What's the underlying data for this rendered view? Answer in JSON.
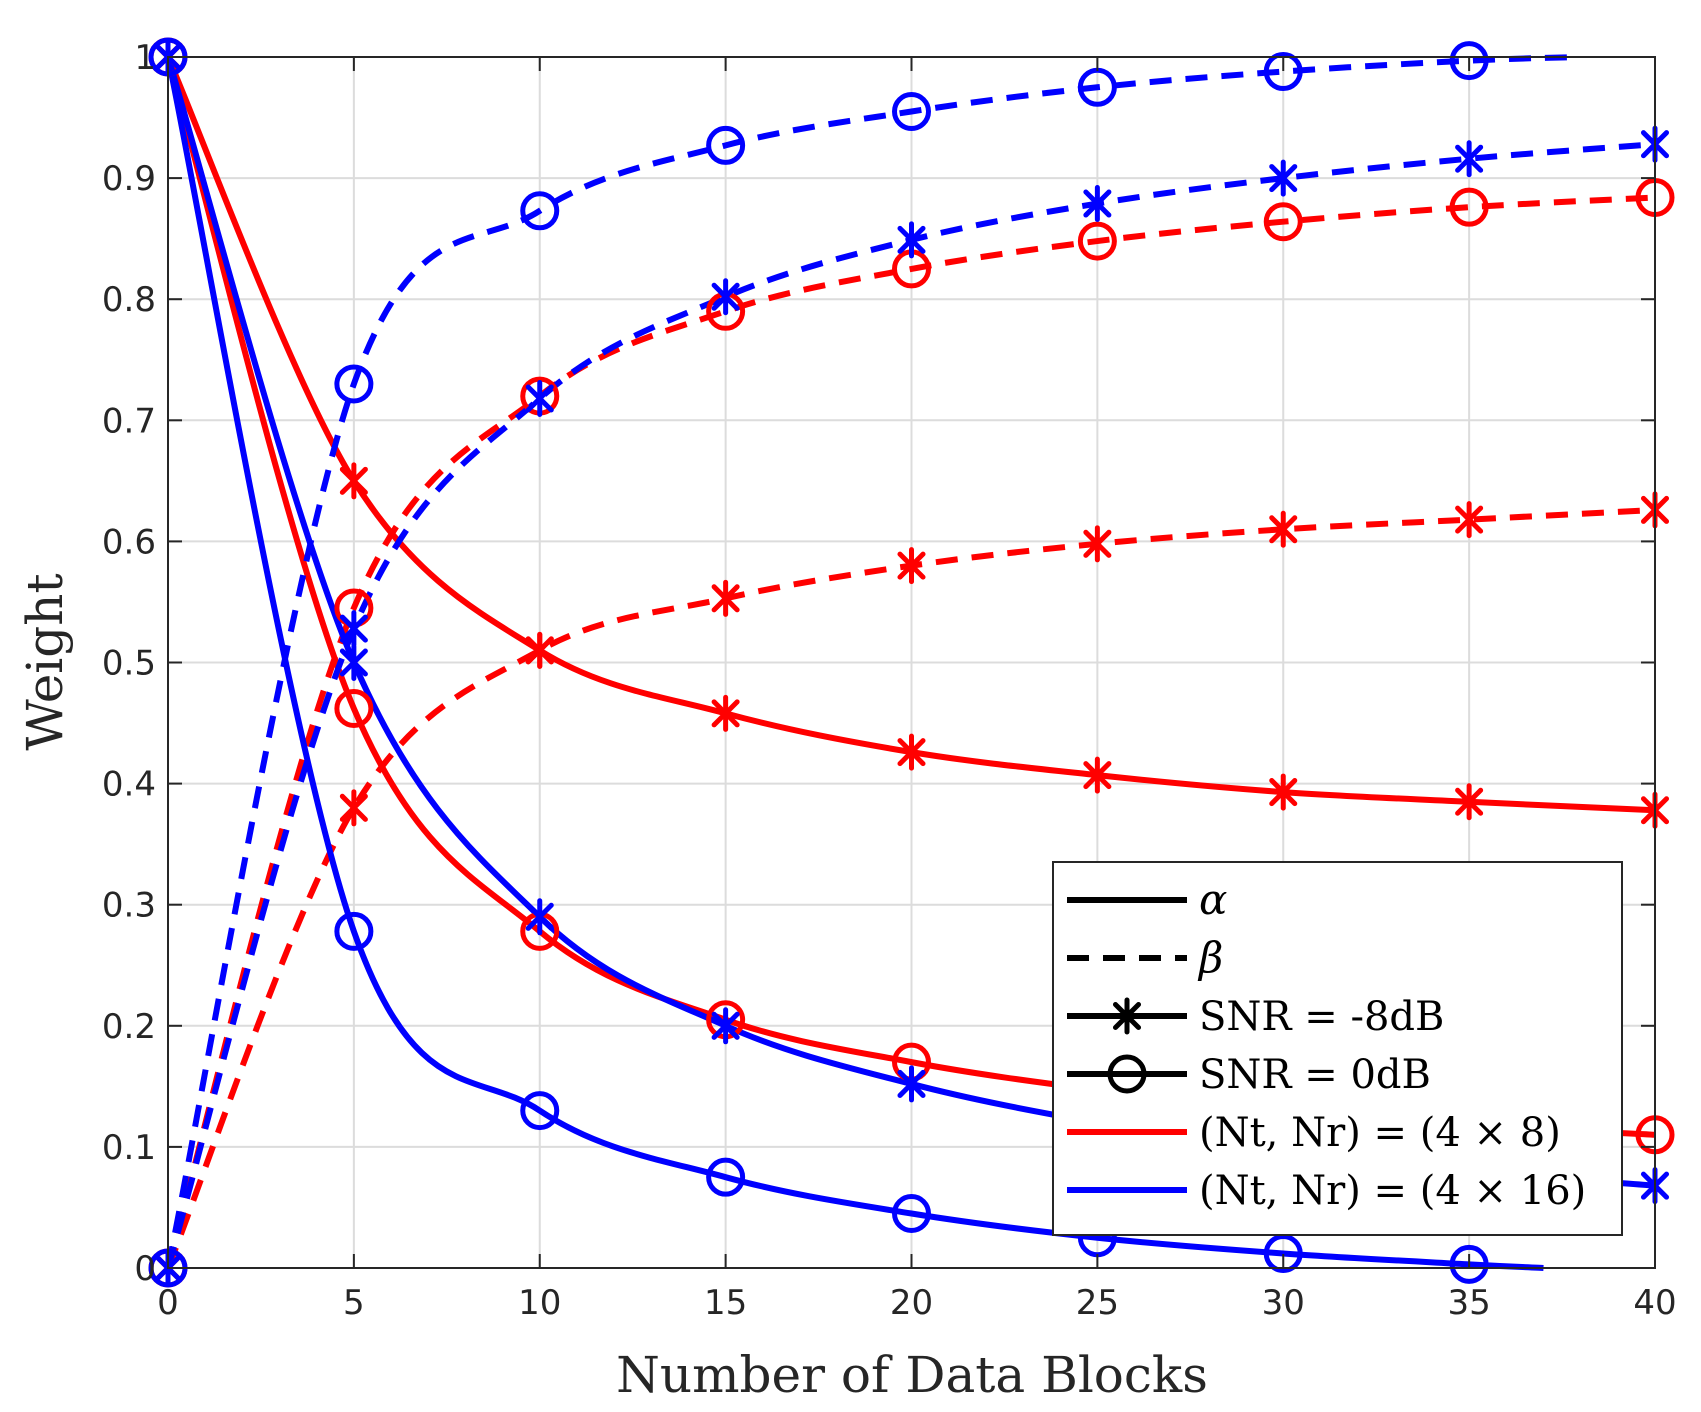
{
  "chart_data": {
    "type": "line",
    "title": "",
    "xlabel": "Number of Data Blocks",
    "ylabel": "Weight",
    "xlim": [
      0,
      40
    ],
    "ylim": [
      0,
      1
    ],
    "x_ticks": [
      "0",
      "5",
      "10",
      "15",
      "20",
      "25",
      "30",
      "35",
      "40"
    ],
    "y_ticks": [
      "0",
      "0.1",
      "0.2",
      "0.3",
      "0.4",
      "0.5",
      "0.6",
      "0.7",
      "0.8",
      "0.9",
      "1"
    ],
    "grid": true,
    "legend_position": "bottom-right",
    "legend": [
      {
        "label": "α",
        "style": "solid",
        "marker": "none",
        "color": "#000000"
      },
      {
        "label": "β",
        "style": "dashed",
        "marker": "none",
        "color": "#000000"
      },
      {
        "label": "SNR = -8dB",
        "style": "solid",
        "marker": "asterisk",
        "color": "#000000"
      },
      {
        "label": "SNR = 0dB",
        "style": "solid",
        "marker": "circle",
        "color": "#000000"
      },
      {
        "label": "(Nt, Nr) = (4 × 8)",
        "style": "solid",
        "marker": "none",
        "color": "#ff0000"
      },
      {
        "label": "(Nt, Nr) = (4 × 16)",
        "style": "solid",
        "marker": "none",
        "color": "#0000ff"
      }
    ],
    "series": [
      {
        "style": "solid",
        "marker": "asterisk",
        "color": "#ff0000",
        "x": [
          0,
          5,
          10,
          15,
          20,
          25,
          30,
          35,
          40
        ],
        "y": [
          1.0,
          0.65,
          0.51,
          0.458,
          0.426,
          0.407,
          0.393,
          0.385,
          0.378
        ]
      },
      {
        "style": "dashed",
        "marker": "asterisk",
        "color": "#ff0000",
        "x": [
          0,
          5,
          10,
          15,
          20,
          25,
          30,
          35,
          40
        ],
        "y": [
          0.0,
          0.38,
          0.51,
          0.553,
          0.58,
          0.598,
          0.61,
          0.618,
          0.626
        ]
      },
      {
        "style": "solid",
        "marker": "circle",
        "color": "#ff0000",
        "x": [
          0,
          5,
          10,
          15,
          20,
          25,
          30,
          35,
          40
        ],
        "y": [
          1.0,
          0.462,
          0.278,
          0.205,
          0.17,
          0.147,
          0.13,
          0.118,
          0.11
        ]
      },
      {
        "style": "dashed",
        "marker": "circle",
        "color": "#ff0000",
        "x": [
          0,
          5,
          10,
          15,
          20,
          25,
          30,
          35,
          40
        ],
        "y": [
          0.0,
          0.545,
          0.72,
          0.79,
          0.825,
          0.848,
          0.864,
          0.876,
          0.884
        ]
      },
      {
        "style": "solid",
        "marker": "asterisk",
        "color": "#0000ff",
        "x": [
          0,
          5,
          10,
          15,
          20,
          25,
          30,
          35,
          40
        ],
        "y": [
          1.0,
          0.5,
          0.29,
          0.2,
          0.152,
          0.12,
          0.097,
          0.08,
          0.068
        ]
      },
      {
        "style": "dashed",
        "marker": "asterisk",
        "color": "#0000ff",
        "x": [
          0,
          5,
          10,
          15,
          20,
          25,
          30,
          35,
          40
        ],
        "y": [
          0.0,
          0.528,
          0.718,
          0.802,
          0.849,
          0.879,
          0.9,
          0.916,
          0.928
        ]
      },
      {
        "style": "solid",
        "marker": "circle",
        "color": "#0000ff",
        "x": [
          0,
          5,
          10,
          15,
          20,
          25,
          30,
          35,
          37
        ],
        "y": [
          1.0,
          0.278,
          0.13,
          0.075,
          0.045,
          0.025,
          0.012,
          0.003,
          0.0
        ]
      },
      {
        "style": "dashed",
        "marker": "circle",
        "color": "#0000ff",
        "x": [
          0,
          5,
          10,
          15,
          20,
          25,
          30,
          35,
          38
        ],
        "y": [
          0.0,
          0.73,
          0.873,
          0.927,
          0.955,
          0.975,
          0.988,
          0.997,
          1.0
        ]
      }
    ]
  }
}
